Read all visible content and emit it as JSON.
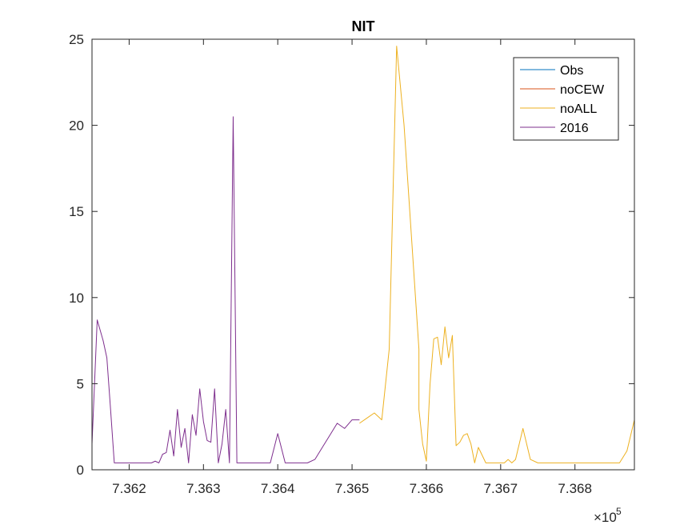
{
  "chart_data": {
    "type": "line",
    "title": "NIT",
    "xlabel": "",
    "ylabel": "",
    "x_exponent_label": "×10",
    "x_exponent_power": "5",
    "xlim": [
      7.3615,
      7.3688
    ],
    "ylim": [
      0,
      25
    ],
    "grid": false,
    "legend_position": "top-right",
    "x_ticks": [
      7.362,
      7.363,
      7.364,
      7.365,
      7.366,
      7.367,
      7.368
    ],
    "x_tick_labels": [
      "7.362",
      "7.363",
      "7.364",
      "7.365",
      "7.366",
      "7.367",
      "7.368"
    ],
    "y_ticks": [
      0,
      5,
      10,
      15,
      20,
      25
    ],
    "y_tick_labels": [
      "0",
      "5",
      "10",
      "15",
      "20",
      "25"
    ],
    "series": [
      {
        "name": "Obs",
        "color": "#0072BD",
        "x": [],
        "y": []
      },
      {
        "name": "noCEW",
        "color": "#D95319",
        "x": [],
        "y": []
      },
      {
        "name": "noALL",
        "color": "#EDB120",
        "x": [
          7.3651,
          7.3652,
          7.3653,
          7.3654,
          7.3655,
          7.3656,
          7.3657,
          7.3658,
          7.3659,
          7.3659,
          7.36595,
          7.366,
          7.36605,
          7.3661,
          7.36615,
          7.3662,
          7.36625,
          7.3663,
          7.36635,
          7.3664,
          7.36645,
          7.3665,
          7.36655,
          7.3666,
          7.36665,
          7.3667,
          7.3668,
          7.36685,
          7.3669,
          7.36695,
          7.367,
          7.36705,
          7.3671,
          7.36715,
          7.3672,
          7.3673,
          7.3674,
          7.3675,
          7.36755,
          7.3676,
          7.36765,
          7.3677,
          7.3678,
          7.3679,
          7.368,
          7.3681,
          7.3682,
          7.3683,
          7.3684,
          7.3685,
          7.3686,
          7.3687,
          7.3688,
          7.3688
        ],
        "y": [
          2.7,
          3.0,
          3.3,
          2.9,
          7.0,
          24.6,
          20.0,
          13.5,
          7.0,
          3.5,
          1.5,
          0.5,
          5.0,
          7.6,
          7.7,
          6.1,
          8.3,
          6.5,
          7.8,
          1.4,
          1.6,
          2.0,
          2.1,
          1.5,
          0.4,
          1.3,
          0.4,
          0.4,
          0.4,
          0.4,
          0.4,
          0.4,
          0.6,
          0.4,
          0.6,
          2.4,
          0.6,
          0.4,
          0.4,
          0.4,
          0.4,
          0.4,
          0.4,
          0.4,
          0.4,
          0.4,
          0.4,
          0.4,
          0.4,
          0.4,
          0.4,
          1.1,
          2.9,
          2.9
        ]
      },
      {
        "name": "2016",
        "color": "#7E2F8E",
        "x": [
          7.3615,
          7.36157,
          7.36165,
          7.3617,
          7.36175,
          7.3618,
          7.3619,
          7.362,
          7.3621,
          7.3622,
          7.3623,
          7.36235,
          7.3624,
          7.36245,
          7.3625,
          7.36255,
          7.3626,
          7.36265,
          7.3627,
          7.36275,
          7.3628,
          7.36285,
          7.3629,
          7.36295,
          7.363,
          7.36305,
          7.3631,
          7.36315,
          7.3632,
          7.36325,
          7.3633,
          7.36335,
          7.3634,
          7.36345,
          7.3635,
          7.36355,
          7.3636,
          7.36365,
          7.3637,
          7.36375,
          7.3638,
          7.36385,
          7.3639,
          7.364,
          7.3641,
          7.3642,
          7.3643,
          7.3644,
          7.3645,
          7.3646,
          7.3647,
          7.3648,
          7.3649,
          7.365,
          7.36505,
          7.3651
        ],
        "y": [
          1.5,
          8.7,
          7.5,
          6.5,
          3.5,
          0.4,
          0.4,
          0.4,
          0.4,
          0.4,
          0.4,
          0.5,
          0.4,
          0.9,
          1.0,
          2.3,
          0.8,
          3.5,
          1.3,
          2.4,
          0.4,
          3.2,
          2.0,
          4.7,
          2.8,
          1.7,
          1.6,
          4.7,
          0.4,
          1.5,
          3.5,
          0.4,
          20.5,
          0.4,
          0.4,
          0.4,
          0.4,
          0.4,
          0.4,
          0.4,
          0.4,
          0.4,
          0.4,
          2.1,
          0.4,
          0.4,
          0.4,
          0.4,
          0.6,
          1.3,
          2.0,
          2.7,
          2.4,
          2.9,
          2.9,
          2.9
        ]
      }
    ]
  }
}
